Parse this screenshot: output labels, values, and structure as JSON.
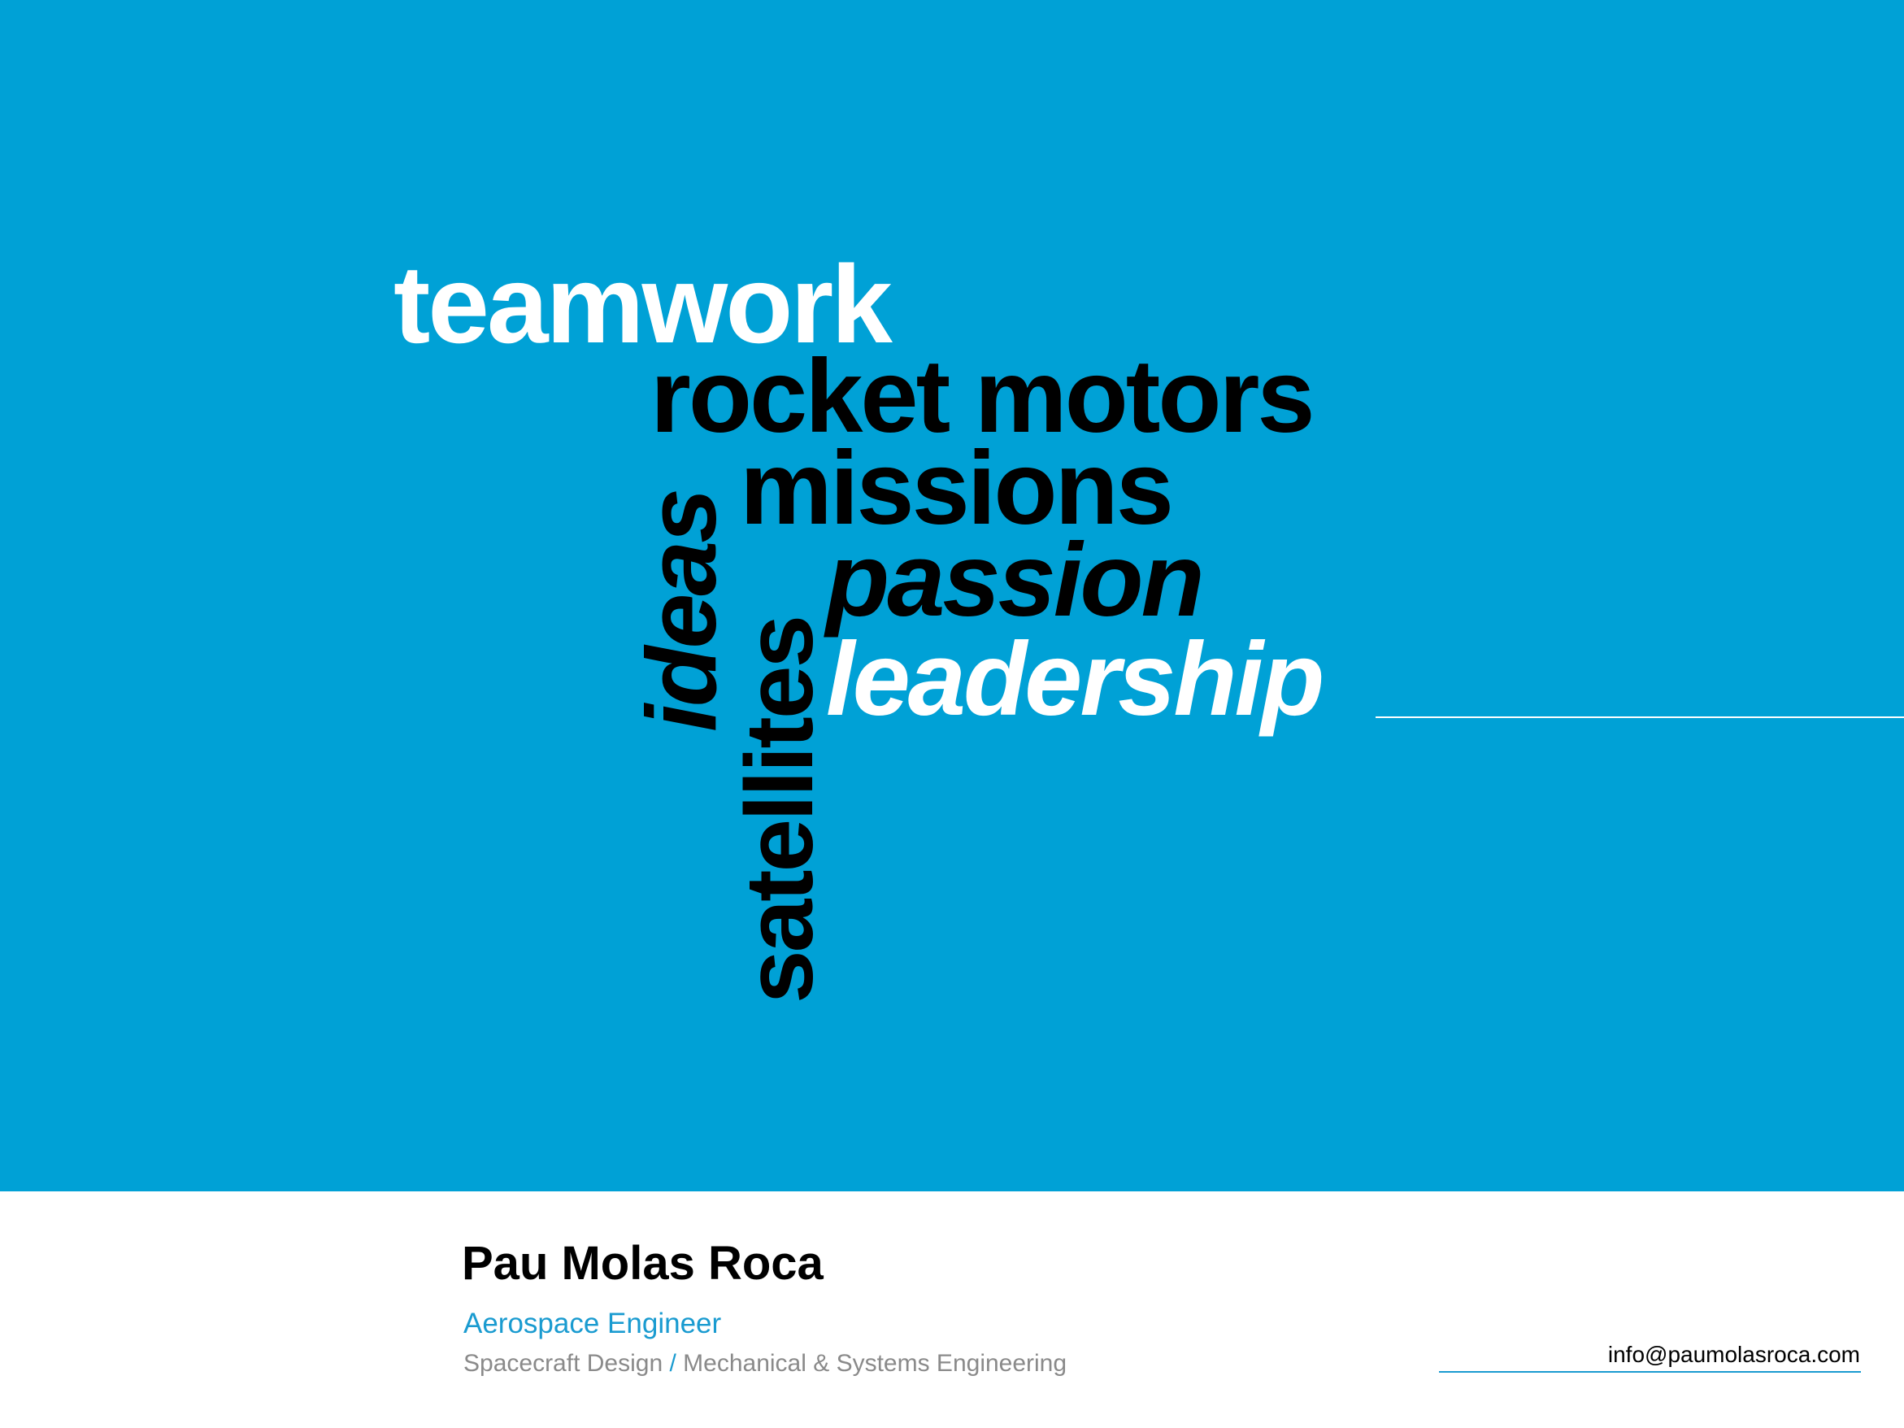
{
  "colors": {
    "accent_blue": "#00a1d6",
    "link_blue": "#1a9bd0",
    "white": "#ffffff",
    "black": "#000000",
    "gray_text": "#8a8a8a"
  },
  "hero": {
    "words": {
      "teamwork": "teamwork",
      "rocket_motors": "rocket motors",
      "missions": "missions",
      "passion": "passion",
      "leadership": "leadership",
      "ideas": "ideas",
      "satellites": "satellites"
    }
  },
  "footer": {
    "name": "Pau Molas Roca",
    "role": "Aerospace Engineer",
    "specialty_1": "Spacecraft Design",
    "separator": "/",
    "specialty_2": "Mechanical & Systems Engineering",
    "email": "info@paumolasroca.com"
  }
}
